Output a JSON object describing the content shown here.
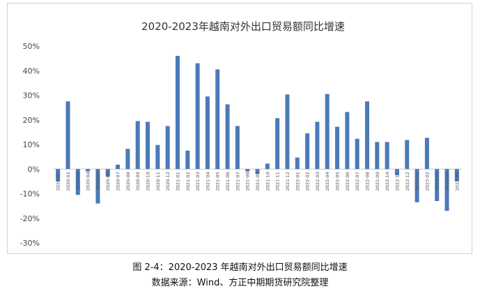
{
  "chart_data": {
    "type": "bar",
    "title": "2020-2023年越南对外出口贸易额同比增速",
    "xlabel": "",
    "ylabel": "",
    "ylim": [
      -30,
      50
    ],
    "yticks": [
      "50%",
      "40%",
      "30%",
      "20%",
      "10%",
      "0%",
      "-10%",
      "-20%",
      "-30%"
    ],
    "grid": false,
    "legend": "none",
    "bar_color": "#4a7ab8",
    "categories": [
      "2020-01",
      "2020-02",
      "2020-03",
      "2020-04",
      "2020-05",
      "2020-06",
      "2020-07",
      "2020-08",
      "2020-09",
      "2020-10",
      "2020-11",
      "2020-12",
      "2021-01",
      "2021-02",
      "2021-03",
      "2021-04",
      "2021-05",
      "2021-06",
      "2021-07",
      "2021-08",
      "2021-09",
      "2021-10",
      "2021-11",
      "2021-12",
      "2022-01",
      "2022-02",
      "2022-03",
      "2022-04",
      "2022-05",
      "2022-06",
      "2022-07",
      "2022-08",
      "2022-09",
      "2022-10",
      "2022-11",
      "2022-12",
      "2023-01",
      "2023-02",
      "2023-03",
      "2023-04",
      "2023-05"
    ],
    "values": [
      -5,
      27.5,
      -10.5,
      -1,
      -14,
      -3,
      1.8,
      8.2,
      19.5,
      19.2,
      9.8,
      17.5,
      46,
      7.5,
      43,
      29.5,
      40.5,
      26.3,
      17.5,
      -1,
      -2,
      2.2,
      20.7,
      30.3,
      4.7,
      14.5,
      19.2,
      30.5,
      17.2,
      23.2,
      12.3,
      27.5,
      11,
      11,
      -2.5,
      11.8,
      -13.5,
      12.7,
      -13,
      -17,
      -5
    ]
  },
  "captions": {
    "figure": "图 2-4：2020-2023 年越南对外出口贸易额同比增速",
    "source": "数据来源：Wind、方正中期期货研究院整理"
  }
}
